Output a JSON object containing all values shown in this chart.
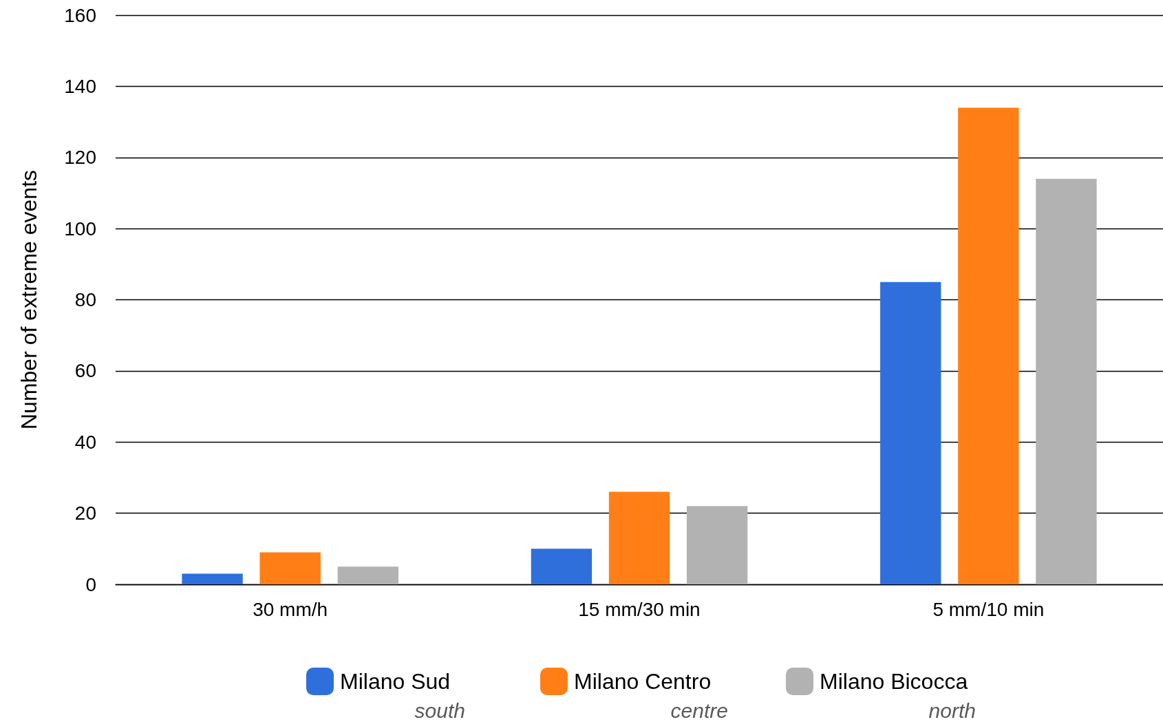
{
  "chart_data": {
    "type": "bar",
    "ylabel": "Number of extreme events",
    "categories": [
      "30 mm/h",
      "15 mm/30 min",
      "5 mm/10 min"
    ],
    "series": [
      {
        "name": "Milano Sud",
        "color": "#2f6fdc",
        "values": [
          3,
          10,
          85
        ]
      },
      {
        "name": "Milano Centro",
        "color": "#ff7f16",
        "values": [
          9,
          26,
          134
        ]
      },
      {
        "name": "Milano Bicocca",
        "color": "#b2b2b2",
        "values": [
          5,
          22,
          114
        ]
      }
    ],
    "ylim": [
      0,
      160
    ],
    "yticks": [
      0,
      20,
      40,
      60,
      80,
      100,
      120,
      140,
      160
    ],
    "grid": "y",
    "legend": "bottom",
    "annotations": [
      "south",
      "centre",
      "north"
    ]
  }
}
